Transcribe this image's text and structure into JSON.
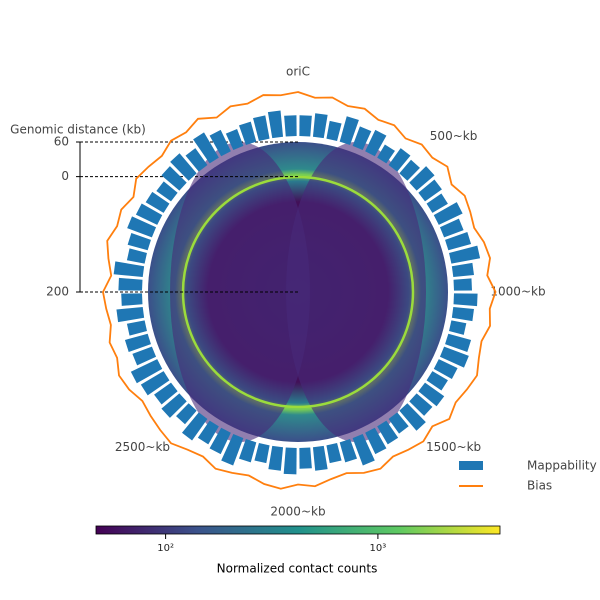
{
  "chart_data": {
    "type": "circular-contact-map",
    "position_labels": [
      "oriC",
      "500~kb",
      "1000~kb",
      "1500~kb",
      "2000~kb",
      "2500~kb"
    ],
    "ylabel": "Genomic distance (kb)",
    "ylim": [
      200,
      -60
    ],
    "yticks": [
      {
        "value": -60,
        "label": "60"
      },
      0,
      200
    ],
    "series": [
      {
        "name": "Mappability",
        "color": "#1f77b4",
        "values": [
          0.6,
          0.7,
          0.5,
          0.8,
          0.6,
          0.7,
          0.4,
          0.6,
          0.5,
          0.7,
          0.6,
          0.5,
          0.8,
          0.6,
          0.7,
          0.9,
          0.6,
          0.5,
          0.7,
          0.6,
          0.4,
          0.7,
          0.8,
          0.6,
          0.5,
          0.7,
          0.6,
          0.8,
          0.5,
          0.6,
          0.7,
          0.9,
          0.6,
          0.5,
          0.7,
          0.6,
          0.8,
          0.7,
          0.5,
          0.6,
          0.9,
          0.7,
          0.6,
          0.8,
          0.5,
          0.7,
          0.6,
          0.8,
          0.9,
          0.6,
          0.7,
          0.5,
          0.8,
          0.6,
          0.7,
          0.9,
          0.5,
          0.6,
          0.8,
          0.7,
          0.6,
          0.5,
          0.7,
          0.8,
          0.6,
          0.9,
          0.7,
          0.5,
          0.6,
          0.7,
          0.8,
          0.6
        ]
      },
      {
        "name": "Bias",
        "color": "#ff7f0e",
        "values": [
          0.8,
          0.6,
          0.7,
          0.5,
          0.6,
          0.4,
          0.5,
          0.3,
          0.5,
          0.4,
          0.6,
          0.3,
          0.5,
          0.4,
          0.3,
          0.5,
          0.6,
          0.4,
          0.7,
          0.5,
          0.6,
          0.4,
          0.5,
          0.7,
          0.6,
          0.5,
          0.7,
          0.4,
          0.6,
          0.5,
          0.4,
          0.6,
          0.5,
          0.3,
          0.4,
          0.6,
          0.5,
          0.7,
          0.6,
          0.4,
          0.5,
          0.6,
          0.4,
          0.5,
          0.7,
          0.6,
          0.5,
          0.4,
          0.6,
          0.7,
          0.5,
          0.6,
          0.4,
          0.5,
          0.6,
          0.3,
          0.5,
          0.7,
          0.5,
          0.6,
          0.4,
          0.7,
          0.6,
          0.5,
          0.7,
          0.6,
          0.8,
          0.5,
          0.7,
          0.6,
          0.8,
          0.7
        ]
      }
    ],
    "colorbar": {
      "label": "Normalized contact counts",
      "lim": [
        47,
        3760
      ],
      "log": true,
      "ticks": [
        {
          "value": 100,
          "label": "10²"
        },
        {
          "value": 1000,
          "label": "10³"
        }
      ]
    }
  }
}
